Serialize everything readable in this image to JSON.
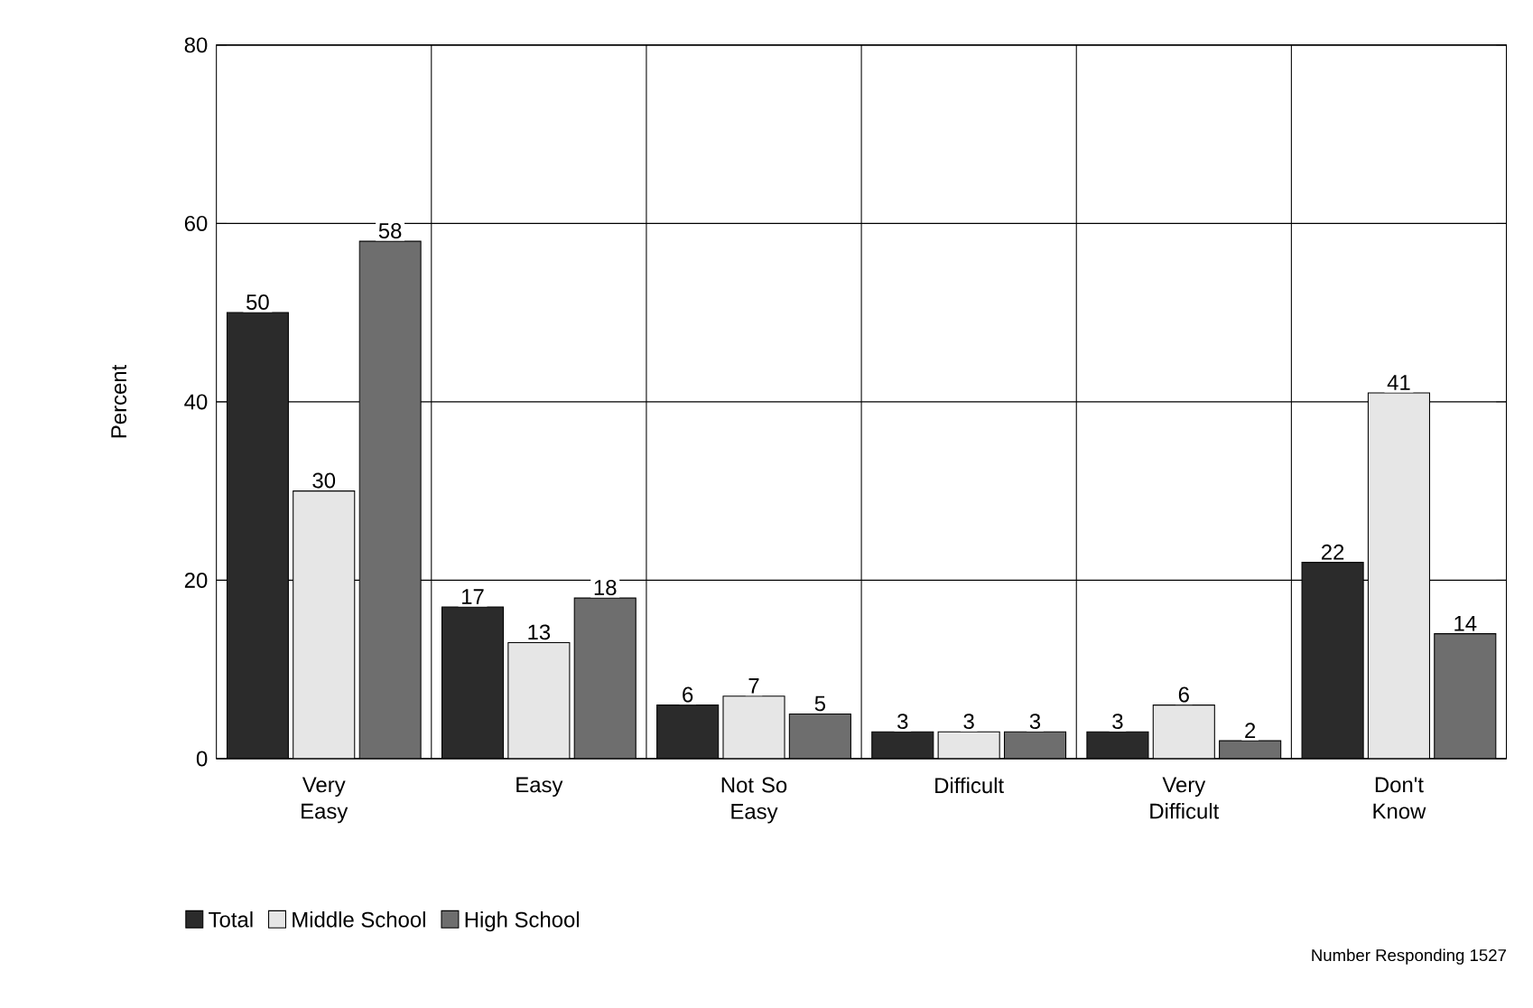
{
  "chart_data": {
    "type": "bar",
    "ylabel": "Percent",
    "categories": [
      "Very Easy",
      "Easy",
      "Not So Easy",
      "Difficult",
      "Very Difficult",
      "Don't Know"
    ],
    "series": [
      {
        "name": "Total",
        "color": "#2b2b2b",
        "values": [
          50,
          17,
          6,
          3,
          3,
          22
        ]
      },
      {
        "name": "Middle School",
        "color": "#e6e6e6",
        "values": [
          30,
          13,
          7,
          3,
          6,
          41
        ]
      },
      {
        "name": "High School",
        "color": "#6e6e6e",
        "values": [
          58,
          18,
          5,
          3,
          2,
          14
        ]
      }
    ],
    "ylim": [
      0,
      80
    ],
    "yticks": [
      0,
      20,
      40,
      60,
      80
    ],
    "grid": true,
    "legend": "bottom left",
    "data_labels": true,
    "annotations": [
      "Number Responding 1527"
    ]
  }
}
